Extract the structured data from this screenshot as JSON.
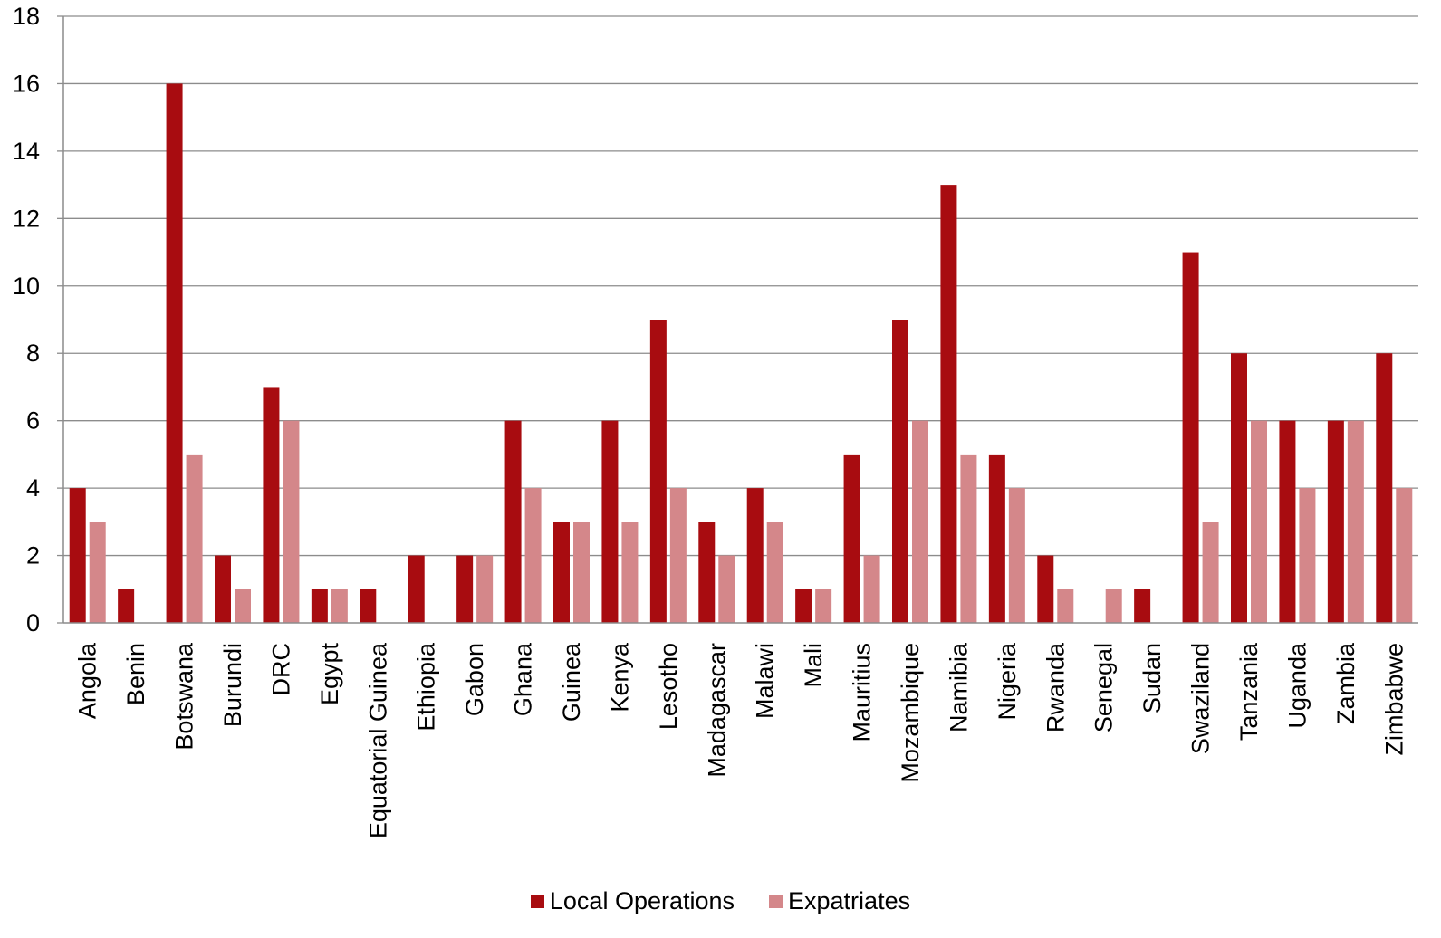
{
  "chart_data": {
    "type": "bar",
    "title": "",
    "xlabel": "",
    "ylabel": "",
    "ylim": [
      0,
      18
    ],
    "yticks": [
      0,
      2,
      4,
      6,
      8,
      10,
      12,
      14,
      16,
      18
    ],
    "grid": true,
    "legend_position": "bottom",
    "categories": [
      "Angola",
      "Benin",
      "Botswana",
      "Burundi",
      "DRC",
      "Egypt",
      "Equatorial Guinea",
      "Ethiopia",
      "Gabon",
      "Ghana",
      "Guinea",
      "Kenya",
      "Lesotho",
      "Madagascar",
      "Malawi",
      "Mali",
      "Mauritius",
      "Mozambique",
      "Namibia",
      "Nigeria",
      "Rwanda",
      "Senegal",
      "Sudan",
      "Swaziland",
      "Tanzania",
      "Uganda",
      "Zambia",
      "Zimbabwe"
    ],
    "series": [
      {
        "name": "Local Operations",
        "color": "#a80c10",
        "values": [
          4,
          1,
          16,
          2,
          7,
          1,
          1,
          2,
          2,
          6,
          3,
          6,
          9,
          3,
          4,
          1,
          5,
          9,
          13,
          5,
          2,
          0,
          1,
          11,
          8,
          6,
          6,
          8
        ]
      },
      {
        "name": "Expatriates",
        "color": "#d4878a",
        "values": [
          3,
          0,
          5,
          1,
          6,
          1,
          0,
          0,
          2,
          4,
          3,
          3,
          4,
          2,
          3,
          1,
          2,
          6,
          5,
          4,
          1,
          1,
          0,
          3,
          6,
          4,
          6,
          4
        ]
      }
    ]
  }
}
